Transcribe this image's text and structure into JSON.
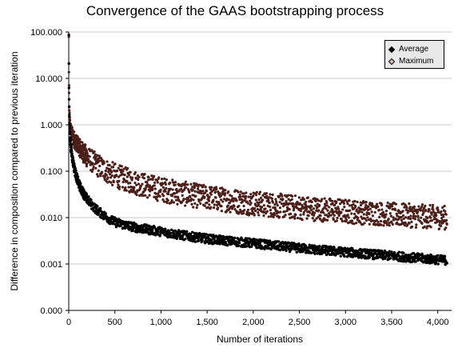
{
  "chart_data": {
    "type": "scatter",
    "title": "Convergence of the GAAS bootstrapping process",
    "xlabel": "Number of iterations",
    "ylabel": "Difference in composition compared to previous iteration",
    "xlim": [
      0,
      4150
    ],
    "ylim": [
      0.0001,
      100
    ],
    "ytick_values": [
      0.0001,
      0.001,
      0.01,
      0.1,
      1,
      10,
      100
    ],
    "yscale": "log",
    "xticks": [
      "0",
      "500",
      "1,000",
      "1,500",
      "2,000",
      "2,500",
      "3,000",
      "3,500",
      "4,000"
    ],
    "yticks": [
      "0.000",
      "0.001",
      "0.010",
      "0.100",
      "1.000",
      "10.000",
      "100.000"
    ],
    "grid": true,
    "legend_position": "top-right",
    "series": [
      {
        "name": "Average",
        "color": "#000000",
        "x": [
          1,
          5,
          10,
          20,
          50,
          100,
          200,
          300,
          500,
          750,
          1000,
          1500,
          2000,
          2500,
          3000,
          3500,
          4100
        ],
        "y": [
          100,
          2.0,
          0.9,
          0.4,
          0.15,
          0.06,
          0.025,
          0.015,
          0.008,
          0.006,
          0.005,
          0.0035,
          0.0028,
          0.0022,
          0.0018,
          0.0015,
          0.0012
        ]
      },
      {
        "name": "Maximum",
        "color": "#5a2a22",
        "x": [
          1,
          5,
          10,
          20,
          50,
          100,
          200,
          300,
          500,
          750,
          1000,
          1500,
          2000,
          2500,
          3000,
          3500,
          4100
        ],
        "y_low": [
          50,
          1.5,
          0.9,
          0.6,
          0.35,
          0.25,
          0.12,
          0.08,
          0.045,
          0.03,
          0.022,
          0.015,
          0.011,
          0.009,
          0.0075,
          0.0065,
          0.0055
        ],
        "y_high": [
          100,
          3.0,
          1.6,
          1.1,
          0.8,
          0.55,
          0.35,
          0.25,
          0.15,
          0.1,
          0.075,
          0.05,
          0.038,
          0.03,
          0.025,
          0.021,
          0.018
        ]
      }
    ]
  }
}
